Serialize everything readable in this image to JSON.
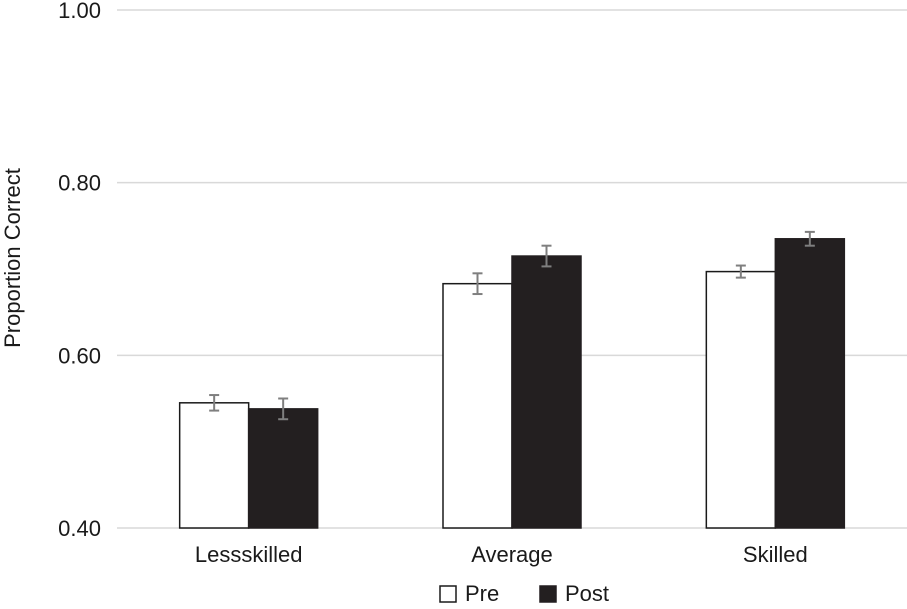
{
  "chart_data": {
    "type": "bar",
    "title": "",
    "xlabel": "",
    "ylabel": "Proportion Correct",
    "ylim": [
      0.4,
      1.0
    ],
    "yticks": [
      "0.40",
      "0.60",
      "0.80",
      "1.00"
    ],
    "ytick_values": [
      0.4,
      0.6,
      0.8,
      1.0
    ],
    "grid": true,
    "legend_position": "bottom",
    "categories": [
      "Lessskilled",
      "Average",
      "Skilled"
    ],
    "series": [
      {
        "name": "Pre",
        "values": [
          0.545,
          0.683,
          0.697
        ],
        "errors": [
          0.009,
          0.012,
          0.007
        ],
        "fill": "#ffffff",
        "stroke": "#1a1a1a"
      },
      {
        "name": "Post",
        "values": [
          0.538,
          0.715,
          0.735
        ],
        "errors": [
          0.012,
          0.012,
          0.008
        ],
        "fill": "#231f20",
        "stroke": "#231f20"
      }
    ],
    "colors": {
      "gridline": "#d9d9d9",
      "errorbar": "#7f7f7f",
      "axis": "#d9d9d9"
    }
  }
}
